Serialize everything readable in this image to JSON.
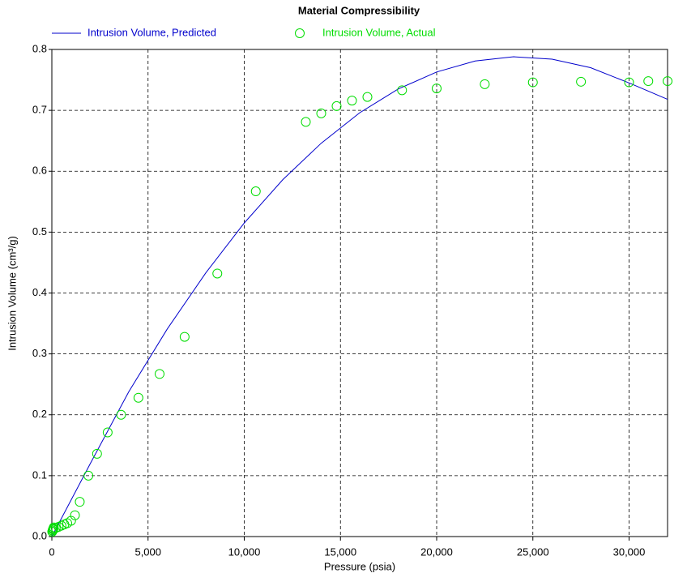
{
  "chart_data": {
    "type": "line-scatter",
    "title": "Material Compressibility",
    "x_label": "Pressure (psia)",
    "y_label": "Intrusion Volume (cm³/g)",
    "xlim": [
      0,
      32000
    ],
    "ylim": [
      0,
      0.8
    ],
    "xticks": [
      0,
      {
        "value": 5000,
        "label": "5,000"
      },
      {
        "value": 10000,
        "label": "10,000"
      },
      {
        "value": 15000,
        "label": "15,000"
      },
      {
        "value": 20000,
        "label": "20,000"
      },
      {
        "value": 25000,
        "label": "25,000"
      },
      {
        "value": 30000,
        "label": "30,000"
      }
    ],
    "yticks": [
      {
        "value": 0,
        "label": "0.0"
      },
      0.1,
      0.2,
      0.3,
      0.4,
      0.5,
      0.6,
      0.7,
      0.8
    ],
    "grid": true,
    "series": [
      {
        "name": "Intrusion Volume, Predicted",
        "kind": "line",
        "color": "#0000cc",
        "x": [
          0,
          2000,
          4000,
          6000,
          8000,
          10000,
          12000,
          14000,
          16000,
          18000,
          20000,
          22000,
          24000,
          26000,
          28000,
          30000,
          32000
        ],
        "values": [
          0.0,
          0.12,
          0.238,
          0.341,
          0.433,
          0.515,
          0.586,
          0.646,
          0.696,
          0.735,
          0.763,
          0.781,
          0.788,
          0.784,
          0.77,
          0.745,
          0.718
        ]
      },
      {
        "name": "Intrusion Volume, Actual",
        "kind": "scatter",
        "color": "#00dd00",
        "x": [
          20,
          40,
          60,
          80,
          100,
          200,
          350,
          500,
          650,
          800,
          1000,
          1200,
          1450,
          1900,
          2350,
          2900,
          3600,
          4500,
          5600,
          6900,
          8600,
          10600,
          13200,
          14000,
          14800,
          15600,
          16400,
          18200,
          20000,
          22500,
          25000,
          27500,
          30000,
          31000,
          32000
        ],
        "values": [
          0.008,
          0.01,
          0.012,
          0.013,
          0.015,
          0.014,
          0.016,
          0.018,
          0.02,
          0.022,
          0.026,
          0.035,
          0.057,
          0.1,
          0.136,
          0.171,
          0.2,
          0.228,
          0.267,
          0.328,
          0.432,
          0.567,
          0.681,
          0.695,
          0.707,
          0.716,
          0.722,
          0.733,
          0.736,
          0.743,
          0.746,
          0.747,
          0.746,
          0.748,
          0.748
        ]
      }
    ]
  }
}
